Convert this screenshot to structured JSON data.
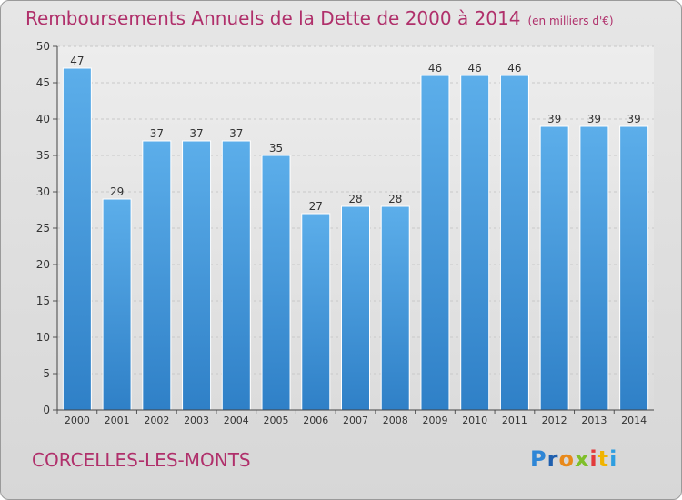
{
  "title": "Remboursements Annuels de la Dette de 2000 à 2014",
  "unit_note": "(en milliers d'€)",
  "commune": "CORCELLES-LES-MONTS",
  "logo": {
    "letters": [
      "P",
      "r",
      "o",
      "x",
      "i",
      "t",
      "i"
    ],
    "colors": [
      "#2e86d6",
      "#1f5fae",
      "#e8891a",
      "#7fbf2a",
      "#e23b3b",
      "#f0b400",
      "#2e9ee0"
    ]
  },
  "chart_data": {
    "type": "bar",
    "categories": [
      "2000",
      "2001",
      "2002",
      "2003",
      "2004",
      "2005",
      "2006",
      "2007",
      "2008",
      "2009",
      "2010",
      "2011",
      "2012",
      "2013",
      "2014"
    ],
    "values": [
      47,
      29,
      37,
      37,
      37,
      35,
      27,
      28,
      28,
      46,
      46,
      46,
      39,
      39,
      39
    ],
    "ylim": [
      0,
      50
    ],
    "yticks": [
      0,
      5,
      10,
      15,
      20,
      25,
      30,
      35,
      40,
      45,
      50
    ],
    "grid": true,
    "bar_color": "#3a93db"
  }
}
